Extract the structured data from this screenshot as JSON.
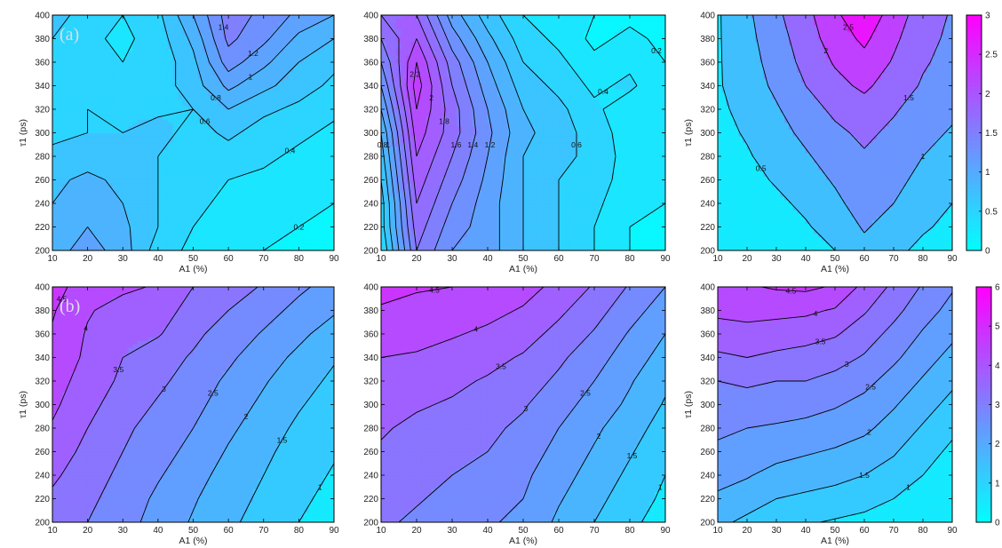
{
  "colors": {
    "cmap_low": "#00ffff",
    "cmap_high": "#ff00ff",
    "contour_line": "#000000"
  },
  "axes": {
    "xlabel": "A1 (%)",
    "ylabel": "τ1 (ps)"
  },
  "row_labels": [
    "(a)",
    "(b)"
  ],
  "chart_data": [
    {
      "type": "heatmap",
      "row": 0,
      "col": 0,
      "panel_label": "(a)",
      "x": [
        10,
        20,
        30,
        40,
        50,
        60,
        70,
        80,
        90
      ],
      "y": [
        200,
        220,
        240,
        260,
        280,
        300,
        320,
        340,
        360,
        380,
        400
      ],
      "xlabel": "A1 (%)",
      "ylabel": "τ1 (ps)",
      "xlim": [
        10,
        90
      ],
      "ylim": [
        200,
        400
      ],
      "xticks": [
        10,
        20,
        30,
        40,
        50,
        60,
        70,
        80,
        90
      ],
      "yticks": [
        200,
        220,
        240,
        260,
        280,
        300,
        320,
        340,
        360,
        380,
        400
      ],
      "levels": [
        0.2,
        0.4,
        0.6,
        0.8,
        1,
        1.2,
        1.4
      ],
      "z": [
        [
          0.9,
          1.1,
          0.9,
          0.5,
          0.35,
          0.25,
          0.2,
          0.15,
          0.1
        ],
        [
          0.85,
          1.0,
          0.85,
          0.6,
          0.4,
          0.3,
          0.25,
          0.2,
          0.15
        ],
        [
          0.8,
          0.95,
          0.8,
          0.6,
          0.45,
          0.35,
          0.3,
          0.25,
          0.2
        ],
        [
          0.75,
          0.85,
          0.75,
          0.6,
          0.45,
          0.4,
          0.35,
          0.3,
          0.25
        ],
        [
          0.65,
          0.7,
          0.65,
          0.6,
          0.5,
          0.5,
          0.45,
          0.35,
          0.3
        ],
        [
          0.55,
          0.6,
          0.6,
          0.7,
          0.5,
          0.65,
          0.5,
          0.45,
          0.35
        ],
        [
          0.5,
          0.6,
          0.55,
          0.55,
          0.6,
          0.8,
          0.65,
          0.55,
          0.45
        ],
        [
          0.5,
          0.55,
          0.5,
          0.5,
          0.7,
          1.05,
          0.85,
          0.7,
          0.55
        ],
        [
          0.55,
          0.5,
          0.4,
          0.45,
          0.75,
          1.3,
          1.05,
          0.8,
          0.65
        ],
        [
          0.6,
          0.45,
          0.35,
          0.5,
          0.85,
          1.45,
          1.25,
          0.95,
          0.8
        ],
        [
          0.7,
          0.5,
          0.4,
          0.55,
          1.0,
          1.5,
          1.35,
          1.15,
          1.0
        ]
      ],
      "cmin": 0,
      "cmax": 3
    },
    {
      "type": "heatmap",
      "row": 0,
      "col": 1,
      "x": [
        10,
        20,
        30,
        40,
        50,
        60,
        70,
        80,
        90
      ],
      "y": [
        200,
        220,
        240,
        260,
        280,
        300,
        320,
        340,
        360,
        380,
        400
      ],
      "xlabel": "A1 (%)",
      "ylabel": "",
      "xlim": [
        10,
        90
      ],
      "ylim": [
        200,
        400
      ],
      "xticks": [
        10,
        20,
        30,
        40,
        50,
        60,
        70,
        80,
        90
      ],
      "yticks": [
        200,
        220,
        240,
        260,
        280,
        300,
        320,
        340,
        360,
        380,
        400
      ],
      "levels": [
        0.2,
        0.4,
        0.6,
        0.8,
        1,
        1.2,
        1.4,
        1.6,
        1.8,
        2,
        2.2
      ],
      "z": [
        [
          0.4,
          1.6,
          1.2,
          1.1,
          0.8,
          0.6,
          0.4,
          0.2,
          0.1
        ],
        [
          0.5,
          1.7,
          1.3,
          1.1,
          0.8,
          0.6,
          0.4,
          0.2,
          0.15
        ],
        [
          0.5,
          1.8,
          1.4,
          1.1,
          0.8,
          0.6,
          0.45,
          0.25,
          0.2
        ],
        [
          0.6,
          1.9,
          1.5,
          1.15,
          0.8,
          0.6,
          0.5,
          0.3,
          0.2
        ],
        [
          0.7,
          2.0,
          1.6,
          1.2,
          0.8,
          0.65,
          0.55,
          0.3,
          0.2
        ],
        [
          0.8,
          2.1,
          1.7,
          1.25,
          0.85,
          0.7,
          0.5,
          0.3,
          0.2
        ],
        [
          1.0,
          2.2,
          1.7,
          1.2,
          0.8,
          0.65,
          0.45,
          0.25,
          0.2
        ],
        [
          1.2,
          2.3,
          1.6,
          1.1,
          0.7,
          0.55,
          0.35,
          0.45,
          0.2
        ],
        [
          1.4,
          2.2,
          1.5,
          1.0,
          0.6,
          0.45,
          0.25,
          0.35,
          0.2
        ],
        [
          1.6,
          2.0,
          1.3,
          0.85,
          0.5,
          0.35,
          0.15,
          0.25,
          0.15
        ],
        [
          1.8,
          1.8,
          1.1,
          0.7,
          0.4,
          0.3,
          0.2,
          0.15,
          0.1
        ]
      ],
      "cmin": 0,
      "cmax": 3
    },
    {
      "type": "heatmap",
      "row": 0,
      "col": 2,
      "x": [
        10,
        20,
        30,
        40,
        50,
        60,
        70,
        80,
        90
      ],
      "y": [
        200,
        220,
        240,
        260,
        280,
        300,
        320,
        340,
        360,
        380,
        400
      ],
      "xlabel": "A1 (%)",
      "ylabel": "τ1 (ps)",
      "xlim": [
        10,
        90
      ],
      "ylim": [
        200,
        400
      ],
      "xticks": [
        10,
        20,
        30,
        40,
        50,
        60,
        70,
        80,
        90
      ],
      "yticks": [
        200,
        220,
        240,
        260,
        280,
        300,
        320,
        340,
        360,
        380,
        400
      ],
      "levels": [
        0.5,
        1,
        1.5,
        2,
        2.5
      ],
      "z": [
        [
          0.1,
          0.15,
          0.2,
          0.3,
          0.5,
          0.85,
          0.6,
          0.4,
          0.3
        ],
        [
          0.15,
          0.2,
          0.3,
          0.45,
          0.7,
          1.05,
          0.8,
          0.55,
          0.4
        ],
        [
          0.2,
          0.25,
          0.4,
          0.6,
          0.9,
          1.2,
          1.0,
          0.7,
          0.5
        ],
        [
          0.25,
          0.35,
          0.55,
          0.8,
          1.05,
          1.3,
          1.15,
          0.85,
          0.65
        ],
        [
          0.3,
          0.45,
          0.7,
          0.95,
          1.2,
          1.45,
          1.3,
          1.0,
          0.8
        ],
        [
          0.35,
          0.55,
          0.85,
          1.1,
          1.4,
          1.6,
          1.4,
          1.15,
          0.95
        ],
        [
          0.4,
          0.65,
          0.95,
          1.3,
          1.6,
          1.8,
          1.55,
          1.3,
          1.1
        ],
        [
          0.45,
          0.75,
          1.1,
          1.5,
          1.85,
          2.1,
          1.75,
          1.45,
          1.25
        ],
        [
          0.45,
          0.8,
          1.2,
          1.65,
          2.05,
          2.35,
          1.95,
          1.55,
          1.35
        ],
        [
          0.45,
          0.85,
          1.3,
          1.75,
          2.25,
          2.6,
          2.1,
          1.65,
          1.4
        ],
        [
          0.45,
          0.9,
          1.4,
          1.85,
          2.4,
          2.9,
          2.25,
          1.75,
          1.45
        ]
      ],
      "cmin": 0,
      "cmax": 3
    },
    {
      "type": "heatmap",
      "row": 1,
      "col": 0,
      "panel_label": "(b)",
      "x": [
        10,
        20,
        30,
        40,
        50,
        60,
        70,
        80,
        90
      ],
      "y": [
        200,
        220,
        240,
        260,
        280,
        300,
        320,
        340,
        360,
        380,
        400
      ],
      "xlabel": "A1 (%)",
      "ylabel": "τ1 (ps)",
      "xlim": [
        10,
        90
      ],
      "ylim": [
        200,
        400
      ],
      "xticks": [
        10,
        20,
        30,
        40,
        50,
        60,
        70,
        80,
        90
      ],
      "yticks": [
        200,
        220,
        240,
        260,
        280,
        300,
        320,
        340,
        360,
        380,
        400
      ],
      "levels": [
        1,
        1.5,
        2,
        2.5,
        3,
        3.5,
        4,
        4.5
      ],
      "z": [
        [
          3.2,
          3.0,
          2.7,
          2.3,
          1.95,
          1.6,
          1.3,
          1.0,
          0.8
        ],
        [
          3.4,
          3.1,
          2.8,
          2.4,
          2.05,
          1.7,
          1.4,
          1.1,
          0.85
        ],
        [
          3.6,
          3.2,
          2.9,
          2.55,
          2.2,
          1.8,
          1.5,
          1.2,
          0.95
        ],
        [
          3.8,
          3.35,
          3.0,
          2.7,
          2.35,
          1.95,
          1.6,
          1.3,
          1.05
        ],
        [
          3.95,
          3.5,
          3.1,
          2.8,
          2.5,
          2.1,
          1.75,
          1.4,
          1.15
        ],
        [
          4.1,
          3.65,
          3.25,
          2.95,
          2.65,
          2.25,
          1.9,
          1.55,
          1.25
        ],
        [
          4.2,
          3.8,
          3.4,
          3.1,
          2.8,
          2.4,
          2.05,
          1.7,
          1.4
        ],
        [
          4.35,
          3.9,
          3.5,
          3.2,
          2.95,
          2.6,
          2.2,
          1.9,
          1.55
        ],
        [
          4.45,
          3.95,
          3.6,
          3.55,
          3.1,
          2.8,
          2.45,
          2.1,
          1.8
        ],
        [
          4.55,
          4.05,
          3.8,
          3.75,
          3.3,
          3.0,
          2.7,
          2.35,
          2.05
        ],
        [
          4.65,
          4.3,
          4.1,
          3.95,
          3.5,
          3.25,
          2.95,
          2.6,
          2.3
        ]
      ],
      "cmin": 0,
      "cmax": 6
    },
    {
      "type": "heatmap",
      "row": 1,
      "col": 1,
      "x": [
        10,
        20,
        30,
        40,
        50,
        60,
        70,
        80,
        90
      ],
      "y": [
        200,
        220,
        240,
        260,
        280,
        300,
        320,
        340,
        360,
        380,
        400
      ],
      "xlabel": "A1 (%)",
      "ylabel": "",
      "xlim": [
        10,
        90
      ],
      "ylim": [
        200,
        400
      ],
      "xticks": [
        10,
        20,
        30,
        40,
        50,
        60,
        70,
        80,
        90
      ],
      "yticks": [
        200,
        220,
        240,
        260,
        280,
        300,
        320,
        340,
        360,
        380,
        400
      ],
      "levels": [
        1,
        1.5,
        2,
        2.5,
        3,
        3.5,
        4,
        4.5
      ],
      "z": [
        [
          3.1,
          2.9,
          2.7,
          2.55,
          2.4,
          1.9,
          1.5,
          1.1,
          0.8
        ],
        [
          3.2,
          3.05,
          2.85,
          2.7,
          2.5,
          2.05,
          1.65,
          1.25,
          0.9
        ],
        [
          3.35,
          3.15,
          3.0,
          2.85,
          2.6,
          2.2,
          1.8,
          1.4,
          1.0
        ],
        [
          3.45,
          3.3,
          3.1,
          3.0,
          2.75,
          2.35,
          1.95,
          1.55,
          1.15
        ],
        [
          3.55,
          3.4,
          3.25,
          3.1,
          2.9,
          2.5,
          2.1,
          1.7,
          1.3
        ],
        [
          3.65,
          3.55,
          3.45,
          3.25,
          3.05,
          2.7,
          2.3,
          1.9,
          1.45
        ],
        [
          3.8,
          3.75,
          3.6,
          3.45,
          3.25,
          2.9,
          2.5,
          2.05,
          1.6
        ],
        [
          4.0,
          3.95,
          3.8,
          3.65,
          3.45,
          3.1,
          2.7,
          2.25,
          1.8
        ],
        [
          4.2,
          4.15,
          4.05,
          3.9,
          3.7,
          3.35,
          2.95,
          2.45,
          2.0
        ],
        [
          4.45,
          4.35,
          4.25,
          4.15,
          3.95,
          3.6,
          3.2,
          2.7,
          2.25
        ],
        [
          4.65,
          4.55,
          4.5,
          4.4,
          4.2,
          3.85,
          3.45,
          2.95,
          2.5
        ]
      ],
      "cmin": 0,
      "cmax": 6
    },
    {
      "type": "heatmap",
      "row": 1,
      "col": 2,
      "x": [
        10,
        20,
        30,
        40,
        50,
        60,
        70,
        80,
        90
      ],
      "y": [
        200,
        220,
        240,
        260,
        280,
        300,
        320,
        340,
        360,
        380,
        400
      ],
      "xlabel": "A1 (%)",
      "ylabel": "τ1 (ps)",
      "xlim": [
        10,
        90
      ],
      "ylim": [
        200,
        400
      ],
      "xticks": [
        10,
        20,
        30,
        40,
        50,
        60,
        70,
        80,
        90
      ],
      "yticks": [
        200,
        220,
        240,
        260,
        280,
        300,
        320,
        340,
        360,
        380,
        400
      ],
      "levels": [
        1,
        1.5,
        2,
        2.5,
        3,
        3.5,
        4,
        4.5
      ],
      "z": [
        [
          1.6,
          1.4,
          1.2,
          1.05,
          0.95,
          0.85,
          0.7,
          0.5,
          0.3
        ],
        [
          1.9,
          1.7,
          1.5,
          1.4,
          1.3,
          1.2,
          1.0,
          0.75,
          0.5
        ],
        [
          2.2,
          2.05,
          1.8,
          1.75,
          1.65,
          1.5,
          1.3,
          1.0,
          0.7
        ],
        [
          2.4,
          2.35,
          2.2,
          2.05,
          1.95,
          1.8,
          1.55,
          1.2,
          0.9
        ],
        [
          2.6,
          2.5,
          2.45,
          2.35,
          2.25,
          2.1,
          1.8,
          1.45,
          1.1
        ],
        [
          2.8,
          2.75,
          2.7,
          2.7,
          2.55,
          2.35,
          2.05,
          1.7,
          1.35
        ],
        [
          3.0,
          3.1,
          3.0,
          3.0,
          2.85,
          2.65,
          2.3,
          1.95,
          1.6
        ],
        [
          3.4,
          3.5,
          3.4,
          3.3,
          3.2,
          2.95,
          2.6,
          2.2,
          1.85
        ],
        [
          3.8,
          3.85,
          3.75,
          3.7,
          3.55,
          3.25,
          2.85,
          2.45,
          2.1
        ],
        [
          4.1,
          4.15,
          4.15,
          4.1,
          3.95,
          3.55,
          3.15,
          2.7,
          2.35
        ],
        [
          4.35,
          4.45,
          4.55,
          4.6,
          4.45,
          3.85,
          3.4,
          2.95,
          2.55
        ]
      ],
      "cmin": 0,
      "cmax": 6
    }
  ],
  "colorbars": [
    {
      "row": 0,
      "min": 0,
      "max": 3,
      "ticks": [
        0,
        0.5,
        1,
        1.5,
        2,
        2.5,
        3
      ]
    },
    {
      "row": 1,
      "min": 0,
      "max": 6,
      "ticks": [
        0,
        1,
        2,
        3,
        4,
        5,
        6
      ]
    }
  ]
}
